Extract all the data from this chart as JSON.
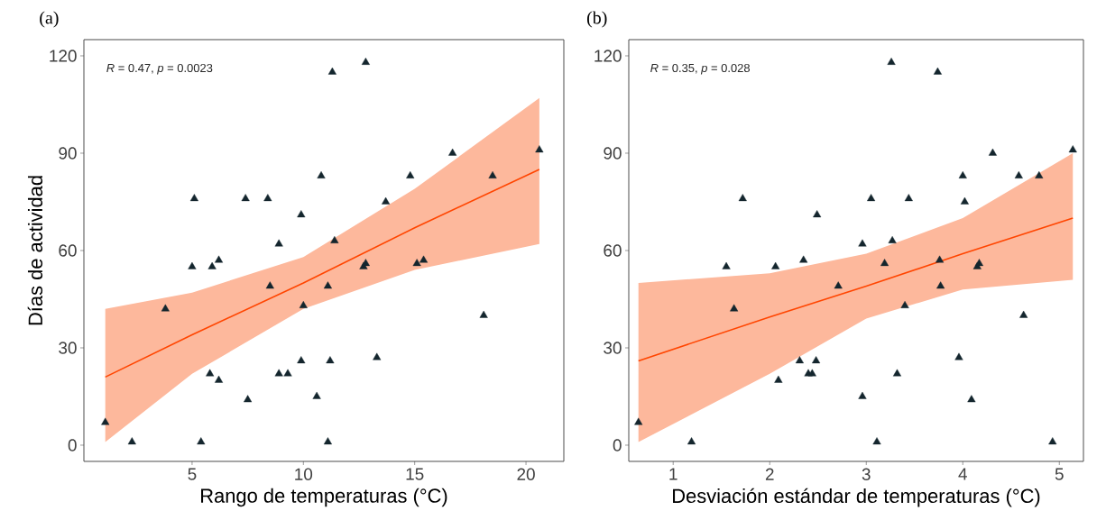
{
  "chart_data": [
    {
      "type": "scatter",
      "title": "(a)",
      "xlabel": "Rango de temperaturas (°C)",
      "ylabel": "Días de actividad",
      "annotations": [
        "*R* = 0.47, *p* = 0.0023"
      ],
      "xlim": [
        0.14,
        21.7
      ],
      "ylim": [
        -5,
        125
      ],
      "xticks": [
        5,
        10,
        15,
        20
      ],
      "yticks": [
        0,
        30,
        60,
        90,
        120
      ],
      "grid": false,
      "series": [
        {
          "type": "scatter",
          "color": "#14262e",
          "marker": "triangle",
          "x": [
            1.1,
            2.3,
            3.8,
            5.1,
            5.0,
            5.9,
            6.2,
            5.8,
            6.2,
            5.4,
            7.4,
            8.4,
            7.5,
            9.9,
            8.9,
            8.5,
            10.0,
            8.9,
            9.3,
            9.9,
            10.6,
            10.8,
            11.1,
            11.2,
            11.1,
            11.3,
            11.4,
            12.8,
            14.8,
            13.7,
            16.7,
            20.6,
            18.5,
            12.7,
            12.8,
            15.1,
            15.4,
            18.1,
            13.3
          ],
          "values": [
            7,
            1,
            42,
            76,
            55,
            55,
            57,
            22,
            20,
            1,
            76,
            76,
            14,
            71,
            62,
            49,
            43,
            22,
            22,
            26,
            15,
            83,
            49,
            26,
            1,
            115,
            63,
            118,
            83,
            75,
            90,
            91,
            83,
            55,
            56,
            56,
            57,
            40,
            27
          ]
        },
        {
          "type": "line",
          "color": "#ff4500",
          "x": [
            1.1,
            5,
            10,
            15,
            20.6
          ],
          "values": [
            21,
            34,
            50,
            67,
            85
          ],
          "lower": [
            1,
            22,
            42,
            54,
            62
          ],
          "upper": [
            42,
            47,
            58,
            79,
            107
          ]
        }
      ]
    },
    {
      "type": "scatter",
      "title": "(b)",
      "xlabel": "Desviación estándar de temperaturas (°C)",
      "annotations": [
        "*R* = 0.35, *p* = 0.028"
      ],
      "xlim": [
        0.54,
        5.25
      ],
      "ylim": [
        -5,
        125
      ],
      "xticks": [
        1,
        2,
        3,
        4,
        5
      ],
      "yticks": [
        0,
        30,
        60,
        90,
        120
      ],
      "grid": false,
      "series": [
        {
          "type": "scatter",
          "color": "#14262e",
          "marker": "triangle",
          "x": [
            0.64,
            1.19,
            1.63,
            1.72,
            1.55,
            2.06,
            2.35,
            2.49,
            2.71,
            2.09,
            2.31,
            2.48,
            2.4,
            2.44,
            2.96,
            3.05,
            3.26,
            3.27,
            3.19,
            3.4,
            3.44,
            2.96,
            3.32,
            3.11,
            3.74,
            3.76,
            3.77,
            3.96,
            4.0,
            4.02,
            4.09,
            4.15,
            4.17,
            4.31,
            4.58,
            4.63,
            4.79,
            4.93,
            5.14
          ],
          "values": [
            7,
            1,
            42,
            76,
            55,
            55,
            57,
            71,
            49,
            20,
            26,
            26,
            22,
            22,
            62,
            76,
            118,
            63,
            56,
            43,
            76,
            15,
            22,
            1,
            115,
            57,
            49,
            27,
            83,
            75,
            14,
            55,
            56,
            90,
            83,
            40,
            83,
            1,
            91
          ]
        },
        {
          "type": "line",
          "color": "#ff4500",
          "x": [
            0.64,
            2,
            3,
            4,
            5.14
          ],
          "values": [
            26,
            39.5,
            49,
            59,
            70
          ],
          "lower": [
            1,
            22,
            39,
            48,
            51
          ],
          "upper": [
            50,
            53,
            59,
            70,
            90
          ]
        }
      ]
    }
  ]
}
